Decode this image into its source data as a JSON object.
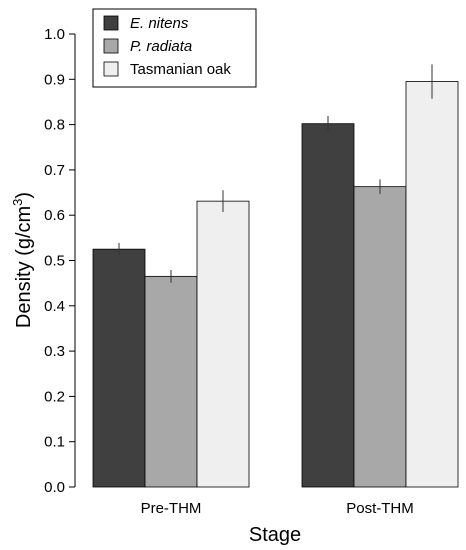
{
  "chart_data": {
    "type": "bar",
    "categories": [
      "Pre-THM",
      "Post-THM"
    ],
    "series": [
      {
        "name": "E. nitens",
        "values": [
          0.525,
          0.802
        ],
        "errors": [
          0.014,
          0.017
        ],
        "color": "#404040",
        "italic": true
      },
      {
        "name": "P. radiata",
        "values": [
          0.465,
          0.663
        ],
        "errors": [
          0.014,
          0.016
        ],
        "color": "#a8a8a8",
        "italic": true
      },
      {
        "name": "Tasmanian oak",
        "values": [
          0.631,
          0.895
        ],
        "errors": [
          0.024,
          0.038
        ],
        "color": "#efefef",
        "italic": false
      }
    ],
    "xlabel": "Stage",
    "ylabel_prefix": "Density (g/cm",
    "ylabel_sup": "3",
    "ylabel_suffix": ")",
    "ylim": [
      0,
      1.0
    ],
    "yticks": [
      "0.0",
      "0.1",
      "0.2",
      "0.3",
      "0.4",
      "0.5",
      "0.6",
      "0.7",
      "0.8",
      "0.9",
      "1.0"
    ],
    "grid": false,
    "legend": "top-left"
  }
}
